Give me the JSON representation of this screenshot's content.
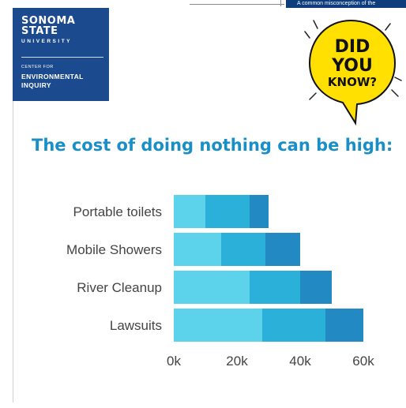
{
  "header": {
    "top_bar_text": "A common misconception of the",
    "logo": {
      "line1": "SONOMA",
      "line2": "STATE",
      "line3": "UNIVERSITY",
      "line4": "CENTER FOR",
      "line5": "ENVIRONMENTAL",
      "line6": "INQUIRY",
      "bg_color": "#1c4a8e"
    },
    "badge": {
      "line1": "DID",
      "line2": "YOU",
      "line3": "KNOW?",
      "color": "#ffe000"
    }
  },
  "headline": "The cost of doing nothing can be high:",
  "chart_data": {
    "type": "bar",
    "orientation": "horizontal",
    "stacked": true,
    "categories": [
      "Portable toilets",
      "Mobile Showers",
      "River Cleanup",
      "Lawsuits"
    ],
    "series": [
      {
        "values": [
          10000,
          15000,
          24000,
          28000
        ],
        "color": "#5cd3ea"
      },
      {
        "values": [
          14000,
          14000,
          16000,
          20000
        ],
        "color": "#2bb0d9"
      },
      {
        "values": [
          6000,
          11000,
          10000,
          12000
        ],
        "color": "#2389c2"
      }
    ],
    "x_ticks": [
      "0k",
      "20k",
      "40k",
      "60k"
    ],
    "xlim": [
      0,
      60000
    ],
    "grid": false
  }
}
